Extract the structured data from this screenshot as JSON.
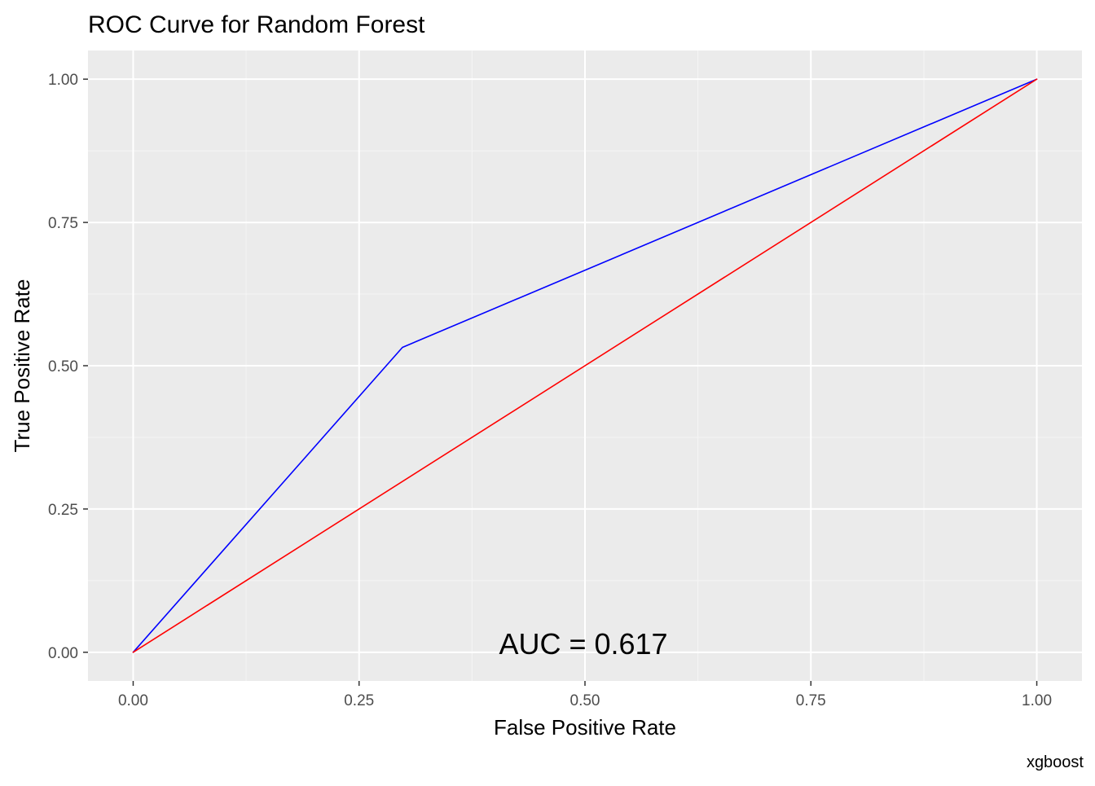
{
  "chart_data": {
    "type": "line",
    "title": "ROC Curve for Random Forest",
    "xlabel": "False Positive Rate",
    "ylabel": "True Positive Rate",
    "caption": "xgboost",
    "annotation": "AUC = 0.617",
    "xlim": [
      -0.05,
      1.05
    ],
    "ylim": [
      -0.05,
      1.05
    ],
    "x_ticks": [
      0.0,
      0.25,
      0.5,
      0.75,
      1.0
    ],
    "y_ticks": [
      0.0,
      0.25,
      0.5,
      0.75,
      1.0
    ],
    "x_tick_labels": [
      "0.00",
      "0.25",
      "0.50",
      "0.75",
      "1.00"
    ],
    "y_tick_labels": [
      "0.00",
      "0.25",
      "0.50",
      "0.75",
      "1.00"
    ],
    "grid": true,
    "series": [
      {
        "color": "#0000ff",
        "x": [
          0.0,
          0.298,
          1.0
        ],
        "y": [
          0.0,
          0.532,
          1.0
        ]
      },
      {
        "color": "#ff0000",
        "x": [
          0.0,
          1.0
        ],
        "y": [
          0.0,
          1.0
        ]
      }
    ],
    "colors": {
      "panel_background": "#ebebeb",
      "grid_major": "#ffffff",
      "grid_minor": "#f5f5f5",
      "axis_text": "#4d4d4d",
      "title_text": "#000000"
    }
  }
}
